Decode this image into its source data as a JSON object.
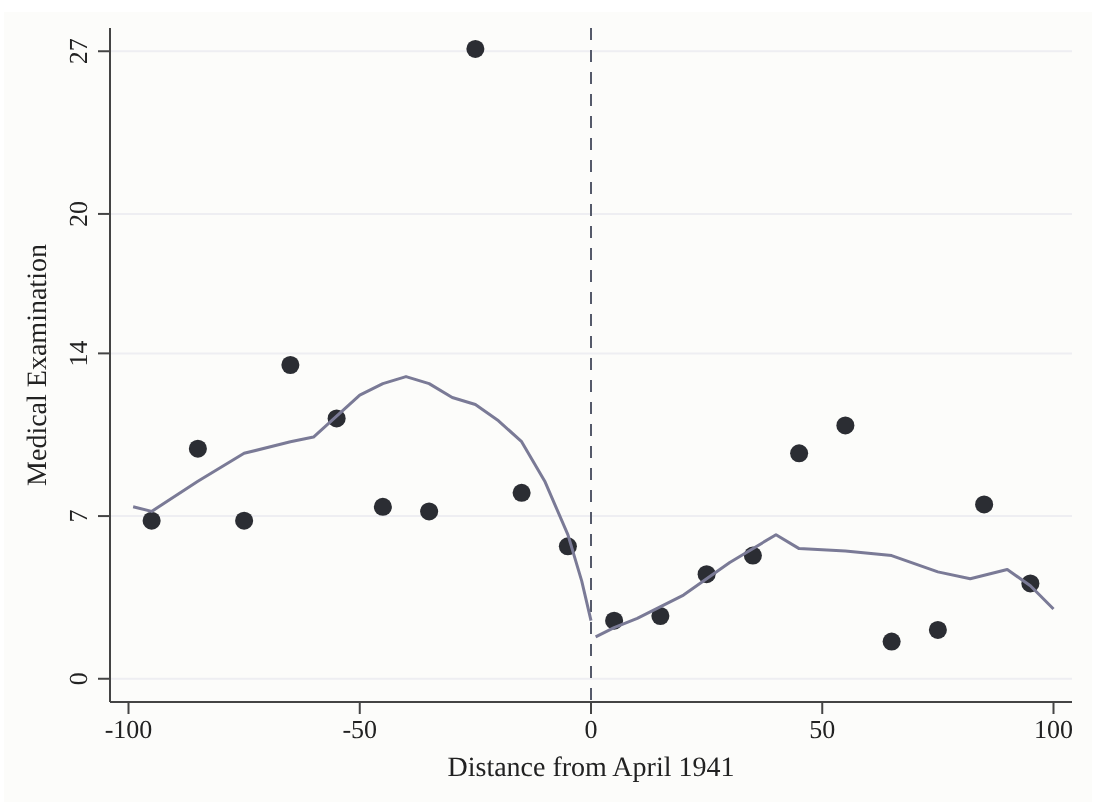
{
  "chart_data": {
    "type": "scatter",
    "xlabel": "Distance from April 1941",
    "ylabel": "Medical Examination",
    "xlim": [
      -104,
      104
    ],
    "ylim": [
      -1,
      28
    ],
    "xticks": [
      -100,
      -50,
      0,
      50,
      100
    ],
    "yticks": [
      0,
      7,
      14,
      20,
      27
    ],
    "grid": "y",
    "ref_lines": [
      {
        "axis": "x",
        "value": 0,
        "color": "#555a6a",
        "line_style": "dashed"
      }
    ],
    "series": [
      {
        "color": "#2b2d33",
        "marker": "circle",
        "x": [
          -95,
          -85,
          -75,
          -65,
          -55,
          -45,
          -35,
          -25,
          -15,
          -5,
          5,
          15,
          25,
          35,
          45,
          55,
          65,
          75,
          85,
          95
        ],
        "values": [
          6.8,
          9.9,
          6.8,
          13.5,
          11.2,
          7.4,
          7.2,
          27.1,
          8,
          5.7,
          2.5,
          2.7,
          4.5,
          5.3,
          9.7,
          10.9,
          1.6,
          2.1,
          7.5,
          4.1
        ]
      },
      {
        "type": "line",
        "color": "#7a7a96",
        "marker": "none",
        "x": [
          -99,
          -95,
          -85,
          -75,
          -65,
          -60,
          -55,
          -50,
          -45,
          -40,
          -35,
          -30,
          -25,
          -20,
          -15,
          -10,
          -5,
          -2,
          0
        ],
        "values": [
          7.4,
          7.2,
          8.5,
          9.7,
          10.2,
          10.4,
          11.3,
          12.2,
          12.7,
          13.0,
          12.7,
          12.1,
          11.8,
          11.1,
          10.2,
          8.5,
          6.2,
          4.2,
          2.5
        ]
      },
      {
        "type": "line",
        "color": "#7a7a96",
        "marker": "none",
        "x": [
          1,
          5,
          10,
          20,
          30,
          40,
          45,
          55,
          65,
          75,
          82,
          90,
          95,
          100
        ],
        "values": [
          1.8,
          2.2,
          2.6,
          3.6,
          5.0,
          6.2,
          5.6,
          5.5,
          5.3,
          4.6,
          4.3,
          4.7,
          4.0,
          3.0
        ]
      }
    ]
  }
}
